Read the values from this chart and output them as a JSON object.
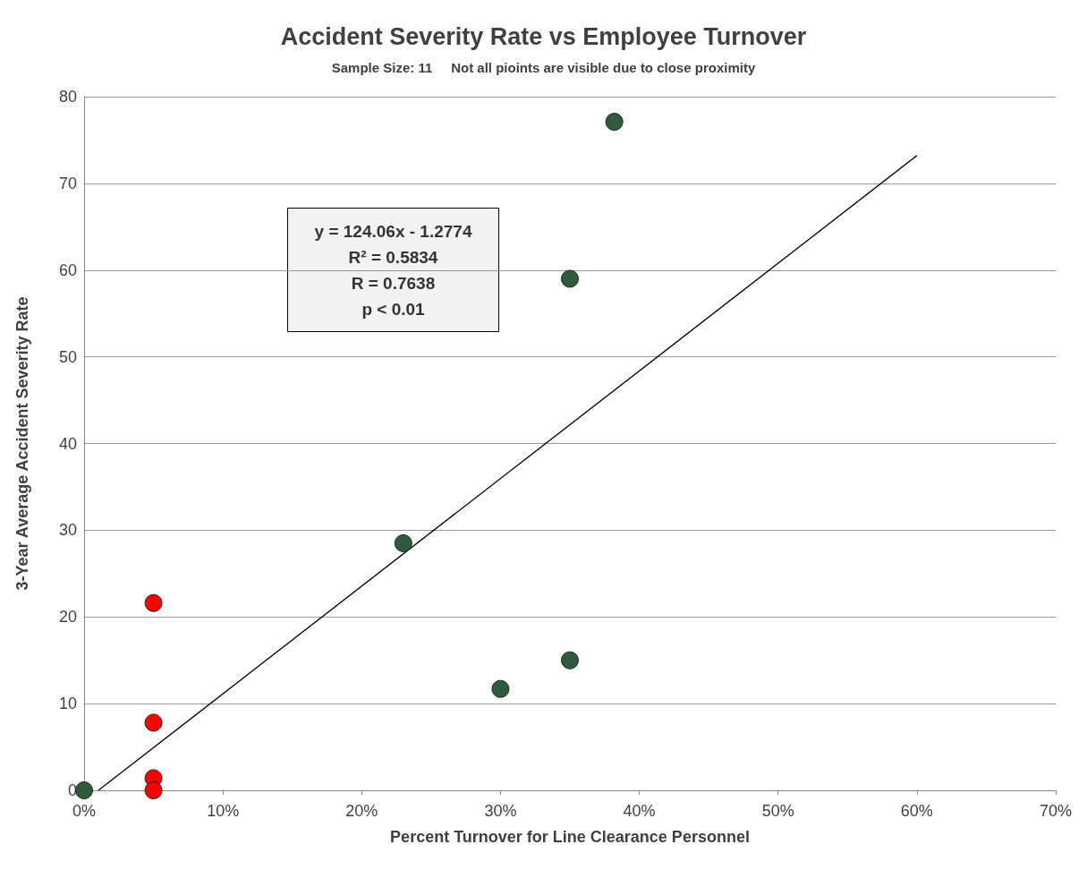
{
  "chart_data": {
    "type": "scatter",
    "title": "Accident Severity Rate vs Employee Turnover",
    "subtitle": "Sample Size: 11     Not all pioints are visible due to close proximity",
    "xlabel": "Percent Turnover for Line Clearance Personnel",
    "ylabel": "3-Year Average Accident Severity Rate",
    "series": [
      {
        "color": "#2f5a3b",
        "x": [
          0,
          23,
          30,
          35,
          35,
          38.2
        ],
        "values": [
          0,
          28.5,
          11.7,
          15,
          59,
          77.1
        ]
      },
      {
        "color": "#ff0000",
        "x": [
          5,
          5,
          5,
          5
        ],
        "values": [
          21.6,
          7.8,
          1.4,
          0
        ]
      },
      {
        "type": "line",
        "color": "#000000",
        "x": [
          1.03,
          60
        ],
        "values": [
          0,
          73.2
        ],
        "marker": "none"
      }
    ],
    "xlim": [
      0,
      70
    ],
    "xticks": [
      {
        "value": 0,
        "label": "0%"
      },
      {
        "value": 10,
        "label": "10%"
      },
      {
        "value": 20,
        "label": "20%"
      },
      {
        "value": 30,
        "label": "30%"
      },
      {
        "value": 40,
        "label": "40%"
      },
      {
        "value": 50,
        "label": "50%"
      },
      {
        "value": 60,
        "label": "60%"
      },
      {
        "value": 70,
        "label": "70%"
      }
    ],
    "ylim": [
      0,
      80
    ],
    "yticks": [
      0,
      10,
      20,
      30,
      40,
      50,
      60,
      70,
      80
    ],
    "grid": "y",
    "marker": "circle",
    "annotations": [
      "y = 124.06x - 1.2774\nR² = 0.5834\nR = 0.7638\np < 0.01"
    ]
  }
}
